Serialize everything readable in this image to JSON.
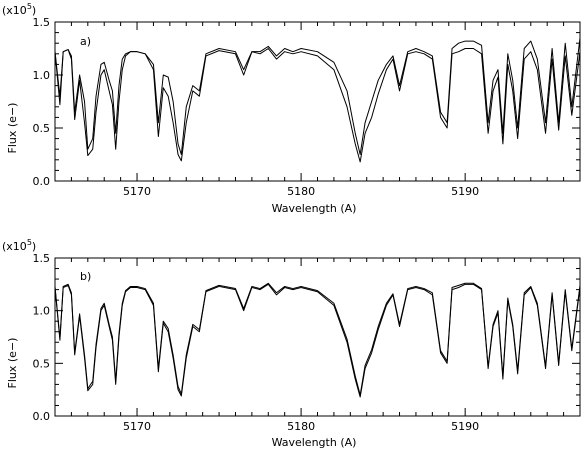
{
  "chart_data": [
    {
      "type": "line",
      "panel_label": "a)",
      "scale_label_prefix": "(x10",
      "scale_label_exponent": "5",
      "scale_label_suffix": ")",
      "xlabel": "Wavelength (A)",
      "ylabel": "Flux (e−)",
      "xlim": [
        5165,
        5197
      ],
      "ylim": [
        0,
        1.5
      ],
      "xticks": [
        5170,
        5180,
        5190
      ],
      "xtick_labels": [
        "5170",
        "5180",
        "5190"
      ],
      "yticks": [
        0.0,
        0.5,
        1.0,
        1.5
      ],
      "ytick_labels": [
        "0.0",
        "0.5",
        "1.0",
        "1.5"
      ],
      "grid": false,
      "series": [
        {
          "x": [
            5165.0,
            5165.3,
            5165.5,
            5165.8,
            5166.0,
            5166.2,
            5166.5,
            5166.8,
            5167.0,
            5167.3,
            5167.5,
            5167.8,
            5168.0,
            5168.3,
            5168.5,
            5168.7,
            5168.9,
            5169.1,
            5169.3,
            5169.6,
            5170.0,
            5170.5,
            5171.0,
            5171.3,
            5171.6,
            5171.9,
            5172.2,
            5172.5,
            5172.7,
            5173.0,
            5173.4,
            5173.8,
            5174.2,
            5175.0,
            5176.0,
            5176.5,
            5177.0,
            5177.5,
            5178.0,
            5178.5,
            5179.0,
            5179.5,
            5180.0,
            5181.0,
            5182.0,
            5182.8,
            5183.3,
            5183.6,
            5183.9,
            5184.3,
            5184.7,
            5185.2,
            5185.6,
            5186.0,
            5186.5,
            5187.0,
            5187.5,
            5188.0,
            5188.5,
            5188.9,
            5189.2,
            5189.6,
            5190.0,
            5190.5,
            5191.0,
            5191.4,
            5191.7,
            5192.0,
            5192.3,
            5192.6,
            5192.9,
            5193.2,
            5193.6,
            5194.0,
            5194.4,
            5194.9,
            5195.3,
            5195.7,
            5196.1,
            5196.5,
            5197.0
          ],
          "values": [
            1.22,
            0.72,
            1.22,
            1.24,
            1.15,
            0.58,
            0.95,
            0.55,
            0.24,
            0.3,
            0.65,
            1.0,
            1.05,
            0.85,
            0.72,
            0.3,
            0.75,
            1.05,
            1.18,
            1.22,
            1.22,
            1.2,
            1.05,
            0.42,
            0.88,
            0.8,
            0.55,
            0.25,
            0.19,
            0.55,
            0.85,
            0.8,
            1.18,
            1.23,
            1.2,
            1.0,
            1.22,
            1.2,
            1.25,
            1.15,
            1.22,
            1.2,
            1.22,
            1.18,
            1.05,
            0.7,
            0.35,
            0.18,
            0.45,
            0.6,
            0.82,
            1.05,
            1.15,
            0.85,
            1.2,
            1.22,
            1.2,
            1.15,
            0.6,
            0.5,
            1.2,
            1.22,
            1.25,
            1.25,
            1.2,
            0.45,
            0.85,
            0.98,
            0.35,
            1.1,
            0.85,
            0.4,
            1.15,
            1.22,
            1.05,
            0.45,
            1.15,
            0.48,
            1.18,
            0.62,
            1.22
          ]
        },
        {
          "x": [
            5165.0,
            5165.3,
            5165.5,
            5165.8,
            5166.0,
            5166.2,
            5166.5,
            5166.8,
            5167.0,
            5167.3,
            5167.5,
            5167.8,
            5168.0,
            5168.3,
            5168.5,
            5168.7,
            5168.9,
            5169.1,
            5169.3,
            5169.6,
            5170.0,
            5170.5,
            5171.0,
            5171.3,
            5171.6,
            5171.9,
            5172.2,
            5172.5,
            5172.7,
            5173.0,
            5173.4,
            5173.8,
            5174.2,
            5175.0,
            5176.0,
            5176.5,
            5177.0,
            5177.5,
            5178.0,
            5178.5,
            5179.0,
            5179.5,
            5180.0,
            5181.0,
            5182.0,
            5182.8,
            5183.3,
            5183.6,
            5183.9,
            5184.3,
            5184.7,
            5185.2,
            5185.6,
            5186.0,
            5186.5,
            5187.0,
            5187.5,
            5188.0,
            5188.5,
            5188.9,
            5189.2,
            5189.6,
            5190.0,
            5190.5,
            5191.0,
            5191.4,
            5191.7,
            5192.0,
            5192.3,
            5192.6,
            5192.9,
            5193.2,
            5193.6,
            5194.0,
            5194.4,
            5194.9,
            5195.3,
            5195.7,
            5196.1,
            5196.5,
            5197.0
          ],
          "values": [
            1.22,
            0.8,
            1.22,
            1.24,
            1.18,
            0.65,
            1.0,
            0.75,
            0.3,
            0.4,
            0.8,
            1.1,
            1.12,
            0.95,
            0.85,
            0.45,
            0.9,
            1.15,
            1.2,
            1.22,
            1.22,
            1.2,
            1.1,
            0.55,
            1.0,
            0.98,
            0.75,
            0.35,
            0.25,
            0.7,
            0.9,
            0.85,
            1.2,
            1.25,
            1.22,
            1.05,
            1.22,
            1.22,
            1.27,
            1.18,
            1.25,
            1.22,
            1.25,
            1.22,
            1.12,
            0.85,
            0.45,
            0.25,
            0.55,
            0.75,
            0.95,
            1.1,
            1.18,
            0.9,
            1.22,
            1.25,
            1.22,
            1.18,
            0.65,
            0.55,
            1.25,
            1.3,
            1.32,
            1.32,
            1.28,
            0.55,
            0.95,
            1.05,
            0.45,
            1.2,
            0.95,
            0.5,
            1.25,
            1.32,
            1.15,
            0.55,
            1.25,
            0.55,
            1.3,
            0.7,
            1.35
          ]
        }
      ]
    },
    {
      "type": "line",
      "panel_label": "b)",
      "scale_label_prefix": "(x10",
      "scale_label_exponent": "5",
      "scale_label_suffix": ")",
      "xlabel": "Wavelength (A)",
      "ylabel": "Flux (e−)",
      "xlim": [
        5165,
        5197
      ],
      "ylim": [
        0,
        1.5
      ],
      "xticks": [
        5170,
        5180,
        5190
      ],
      "xtick_labels": [
        "5170",
        "5180",
        "5190"
      ],
      "yticks": [
        0.0,
        0.5,
        1.0,
        1.5
      ],
      "ytick_labels": [
        "0.0",
        "0.5",
        "1.0",
        "1.5"
      ],
      "grid": false,
      "series": [
        {
          "x": [
            5165.0,
            5165.3,
            5165.5,
            5165.8,
            5166.0,
            5166.2,
            5166.5,
            5166.8,
            5167.0,
            5167.3,
            5167.5,
            5167.8,
            5168.0,
            5168.3,
            5168.5,
            5168.7,
            5168.9,
            5169.1,
            5169.3,
            5169.6,
            5170.0,
            5170.5,
            5171.0,
            5171.3,
            5171.6,
            5171.9,
            5172.2,
            5172.5,
            5172.7,
            5173.0,
            5173.4,
            5173.8,
            5174.2,
            5175.0,
            5176.0,
            5176.5,
            5177.0,
            5177.5,
            5178.0,
            5178.5,
            5179.0,
            5179.5,
            5180.0,
            5181.0,
            5182.0,
            5182.8,
            5183.3,
            5183.6,
            5183.9,
            5184.3,
            5184.7,
            5185.2,
            5185.6,
            5186.0,
            5186.5,
            5187.0,
            5187.5,
            5188.0,
            5188.5,
            5188.9,
            5189.2,
            5189.6,
            5190.0,
            5190.5,
            5191.0,
            5191.4,
            5191.7,
            5192.0,
            5192.3,
            5192.6,
            5192.9,
            5193.2,
            5193.6,
            5194.0,
            5194.4,
            5194.9,
            5195.3,
            5195.7,
            5196.1,
            5196.5,
            5197.0
          ],
          "values": [
            1.22,
            0.72,
            1.22,
            1.24,
            1.15,
            0.58,
            0.95,
            0.55,
            0.24,
            0.3,
            0.65,
            1.0,
            1.05,
            0.85,
            0.72,
            0.3,
            0.75,
            1.05,
            1.18,
            1.22,
            1.22,
            1.2,
            1.05,
            0.42,
            0.88,
            0.8,
            0.55,
            0.25,
            0.19,
            0.55,
            0.85,
            0.8,
            1.18,
            1.23,
            1.2,
            1.0,
            1.22,
            1.2,
            1.25,
            1.15,
            1.22,
            1.2,
            1.22,
            1.18,
            1.05,
            0.7,
            0.35,
            0.18,
            0.45,
            0.6,
            0.82,
            1.05,
            1.15,
            0.85,
            1.2,
            1.22,
            1.2,
            1.15,
            0.6,
            0.5,
            1.2,
            1.22,
            1.25,
            1.25,
            1.2,
            0.45,
            0.85,
            0.98,
            0.35,
            1.1,
            0.85,
            0.4,
            1.15,
            1.22,
            1.05,
            0.45,
            1.15,
            0.48,
            1.18,
            0.62,
            1.22
          ]
        },
        {
          "x": [
            5165.0,
            5165.3,
            5165.5,
            5165.8,
            5166.0,
            5166.2,
            5166.5,
            5166.8,
            5167.0,
            5167.3,
            5167.5,
            5167.8,
            5168.0,
            5168.3,
            5168.5,
            5168.7,
            5168.9,
            5169.1,
            5169.3,
            5169.6,
            5170.0,
            5170.5,
            5171.0,
            5171.3,
            5171.6,
            5171.9,
            5172.2,
            5172.5,
            5172.7,
            5173.0,
            5173.4,
            5173.8,
            5174.2,
            5175.0,
            5176.0,
            5176.5,
            5177.0,
            5177.5,
            5178.0,
            5178.5,
            5179.0,
            5179.5,
            5180.0,
            5181.0,
            5182.0,
            5182.8,
            5183.3,
            5183.6,
            5183.9,
            5184.3,
            5184.7,
            5185.2,
            5185.6,
            5186.0,
            5186.5,
            5187.0,
            5187.5,
            5188.0,
            5188.5,
            5188.9,
            5189.2,
            5189.6,
            5190.0,
            5190.5,
            5191.0,
            5191.4,
            5191.7,
            5192.0,
            5192.3,
            5192.6,
            5192.9,
            5193.2,
            5193.6,
            5194.0,
            5194.4,
            5194.9,
            5195.3,
            5195.7,
            5196.1,
            5196.5,
            5197.0
          ],
          "values": [
            1.23,
            0.74,
            1.23,
            1.25,
            1.17,
            0.6,
            0.97,
            0.58,
            0.26,
            0.33,
            0.68,
            1.02,
            1.07,
            0.87,
            0.75,
            0.33,
            0.78,
            1.07,
            1.19,
            1.23,
            1.23,
            1.21,
            1.07,
            0.45,
            0.9,
            0.83,
            0.58,
            0.28,
            0.21,
            0.58,
            0.87,
            0.82,
            1.19,
            1.24,
            1.21,
            1.02,
            1.23,
            1.21,
            1.26,
            1.17,
            1.23,
            1.21,
            1.23,
            1.19,
            1.07,
            0.73,
            0.38,
            0.2,
            0.48,
            0.63,
            0.85,
            1.07,
            1.16,
            0.87,
            1.21,
            1.23,
            1.21,
            1.17,
            0.62,
            0.52,
            1.22,
            1.24,
            1.26,
            1.26,
            1.21,
            0.47,
            0.87,
            1.0,
            0.38,
            1.12,
            0.87,
            0.43,
            1.17,
            1.23,
            1.07,
            0.47,
            1.17,
            0.5,
            1.2,
            0.64,
            1.24
          ]
        }
      ]
    }
  ]
}
